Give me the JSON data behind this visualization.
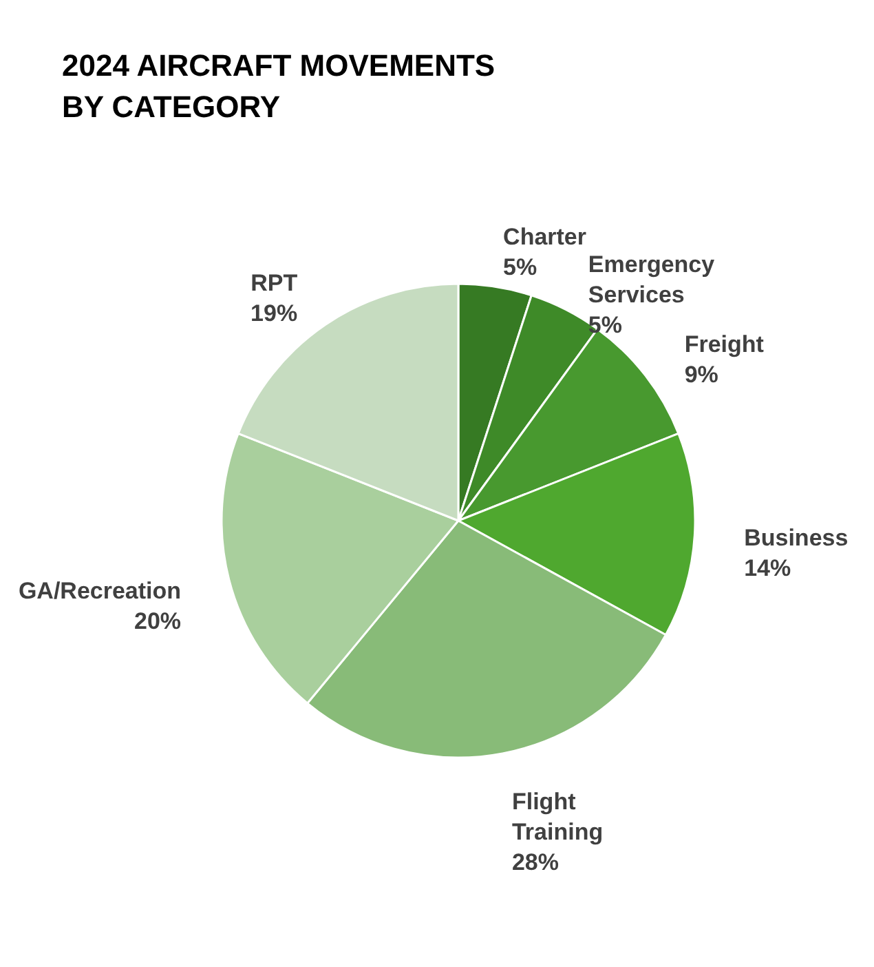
{
  "chart_data": {
    "type": "pie",
    "title": "2024 AIRCRAFT MOVEMENTS BY CATEGORY",
    "categories": [
      "Charter",
      "Emergency Services",
      "Freight",
      "Business",
      "Flight Training",
      "GA/Recreation",
      "RPT"
    ],
    "values": [
      5,
      5,
      9,
      14,
      28,
      20,
      19
    ],
    "value_labels": [
      "5%",
      "5%",
      "9%",
      "14%",
      "28%",
      "20%",
      "19%"
    ],
    "colors": [
      "#367a23",
      "#3e8a28",
      "#48992f",
      "#4fa82f",
      "#88bb78",
      "#a9cf9d",
      "#c6dcc0"
    ],
    "legend": false
  }
}
